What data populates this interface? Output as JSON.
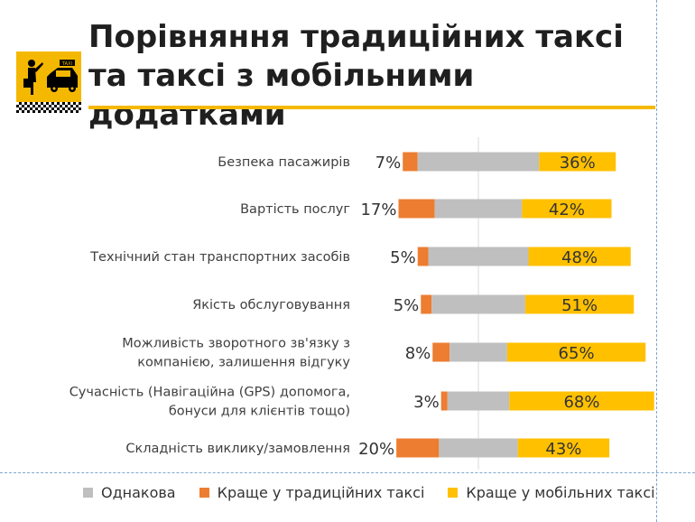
{
  "title": "Порівняння традиційних таксі та таксі з мобільними додатками",
  "logo": {
    "icon": "taxi-person-car-icon",
    "sign_text": "TAXI"
  },
  "colors": {
    "same": "#bfbfbf",
    "traditional": "#ed7d31",
    "mobile": "#ffc000",
    "axis": "#d9d9d9"
  },
  "chart_data": {
    "type": "bar",
    "orientation": "horizontal",
    "stacked": true,
    "categories": [
      "Безпека пасажирів",
      "Вартість послуг",
      "Технічний стан транспортних засобів",
      "Якість обслуговування",
      "Можливість зворотного зв'язку з компанією, залишення відгуку",
      "Сучасність (Навігаційна (GPS) допомога, бонуси для клієнтів тощо)",
      "Складність виклику/замовлення"
    ],
    "category_lines": [
      [
        "Безпека пасажирів"
      ],
      [
        "Вартість послуг"
      ],
      [
        "Технічний стан транспортних засобів"
      ],
      [
        "Якість обслуговування"
      ],
      [
        "Можливість зворотного зв'язку з",
        "компанією, залишення відгуку"
      ],
      [
        "Сучасність (Навігаційна (GPS) допомога,",
        "бонуси для клієнтів тощо)"
      ],
      [
        "Складність виклику/замовлення"
      ]
    ],
    "series": [
      {
        "name": "Краще у традиційних таксі",
        "values": [
          7,
          17,
          5,
          5,
          8,
          3,
          20
        ],
        "labels": [
          "7%",
          "17%",
          "5%",
          "5%",
          "8%",
          "3%",
          "20%"
        ]
      },
      {
        "name": "Однакова",
        "values": [
          57,
          41,
          47,
          44,
          27,
          29,
          37
        ]
      },
      {
        "name": "Краще у мобільних таксі",
        "values": [
          36,
          42,
          48,
          51,
          65,
          68,
          43
        ],
        "labels": [
          "36%",
          "42%",
          "48%",
          "51%",
          "65%",
          "68%",
          "43%"
        ]
      }
    ],
    "legend": [
      "Однакова",
      "Краще у традиційних таксі",
      "Краще у мобільних таксі"
    ],
    "legend_position": "bottom",
    "grid": false
  }
}
